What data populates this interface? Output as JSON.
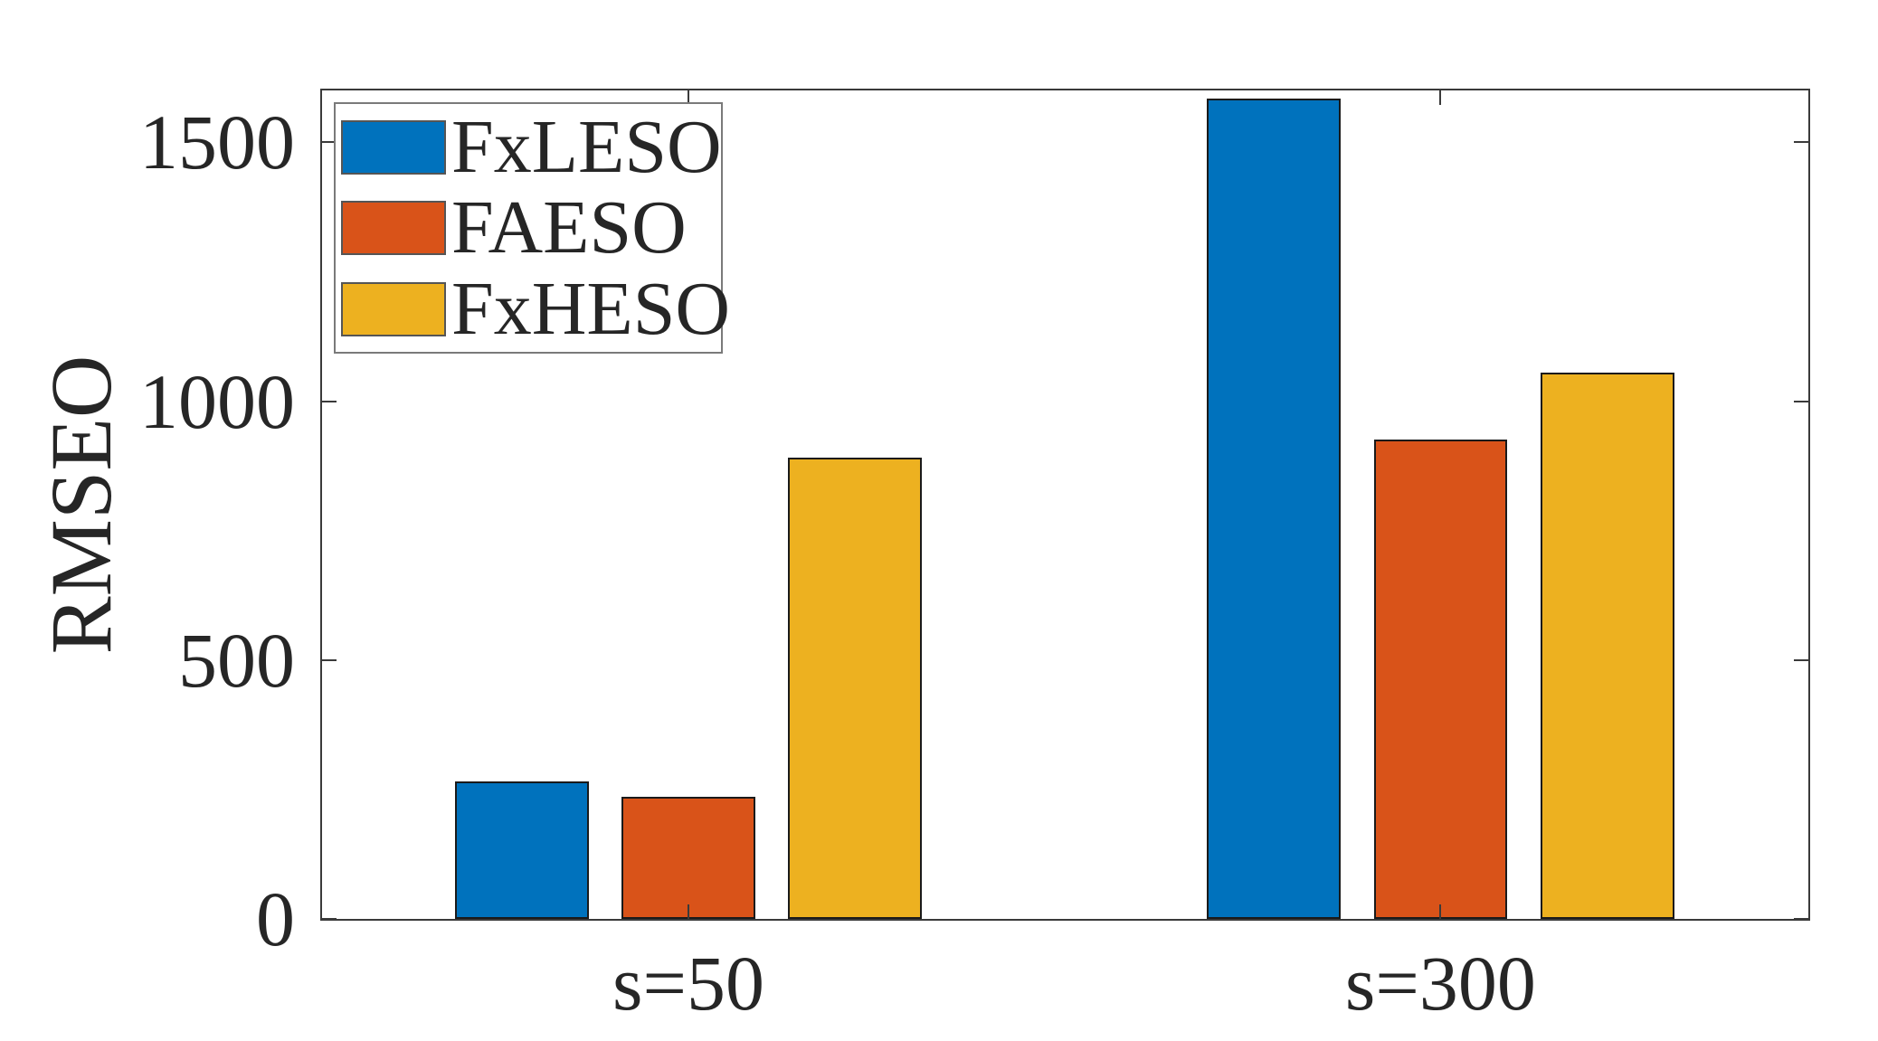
{
  "chart_data": {
    "type": "bar",
    "categories": [
      "s=50",
      "s=300"
    ],
    "series": [
      {
        "name": "FxLESO",
        "color": "#0072BD",
        "values": [
          265,
          1585
        ]
      },
      {
        "name": "FAESO",
        "color": "#D95319",
        "values": [
          235,
          925
        ]
      },
      {
        "name": "FxHESO",
        "color": "#EDB120",
        "values": [
          890,
          1055
        ]
      }
    ],
    "title": "",
    "xlabel": "",
    "ylabel": "RMSEO",
    "ylim": [
      0,
      1600
    ],
    "yticks": [
      0,
      500,
      1000,
      1500
    ],
    "ytick_labels": [
      "0",
      "500",
      "1000",
      "1500"
    ],
    "legend_position": "top-left",
    "legend_entries": [
      "FxLESO",
      "FAESO",
      "FxHESO"
    ],
    "grid": false,
    "axis_color": "#3a3a3a",
    "text_color": "#262626",
    "bar_edge_color": "#1a1a1a",
    "background_color": "#ffffff"
  }
}
